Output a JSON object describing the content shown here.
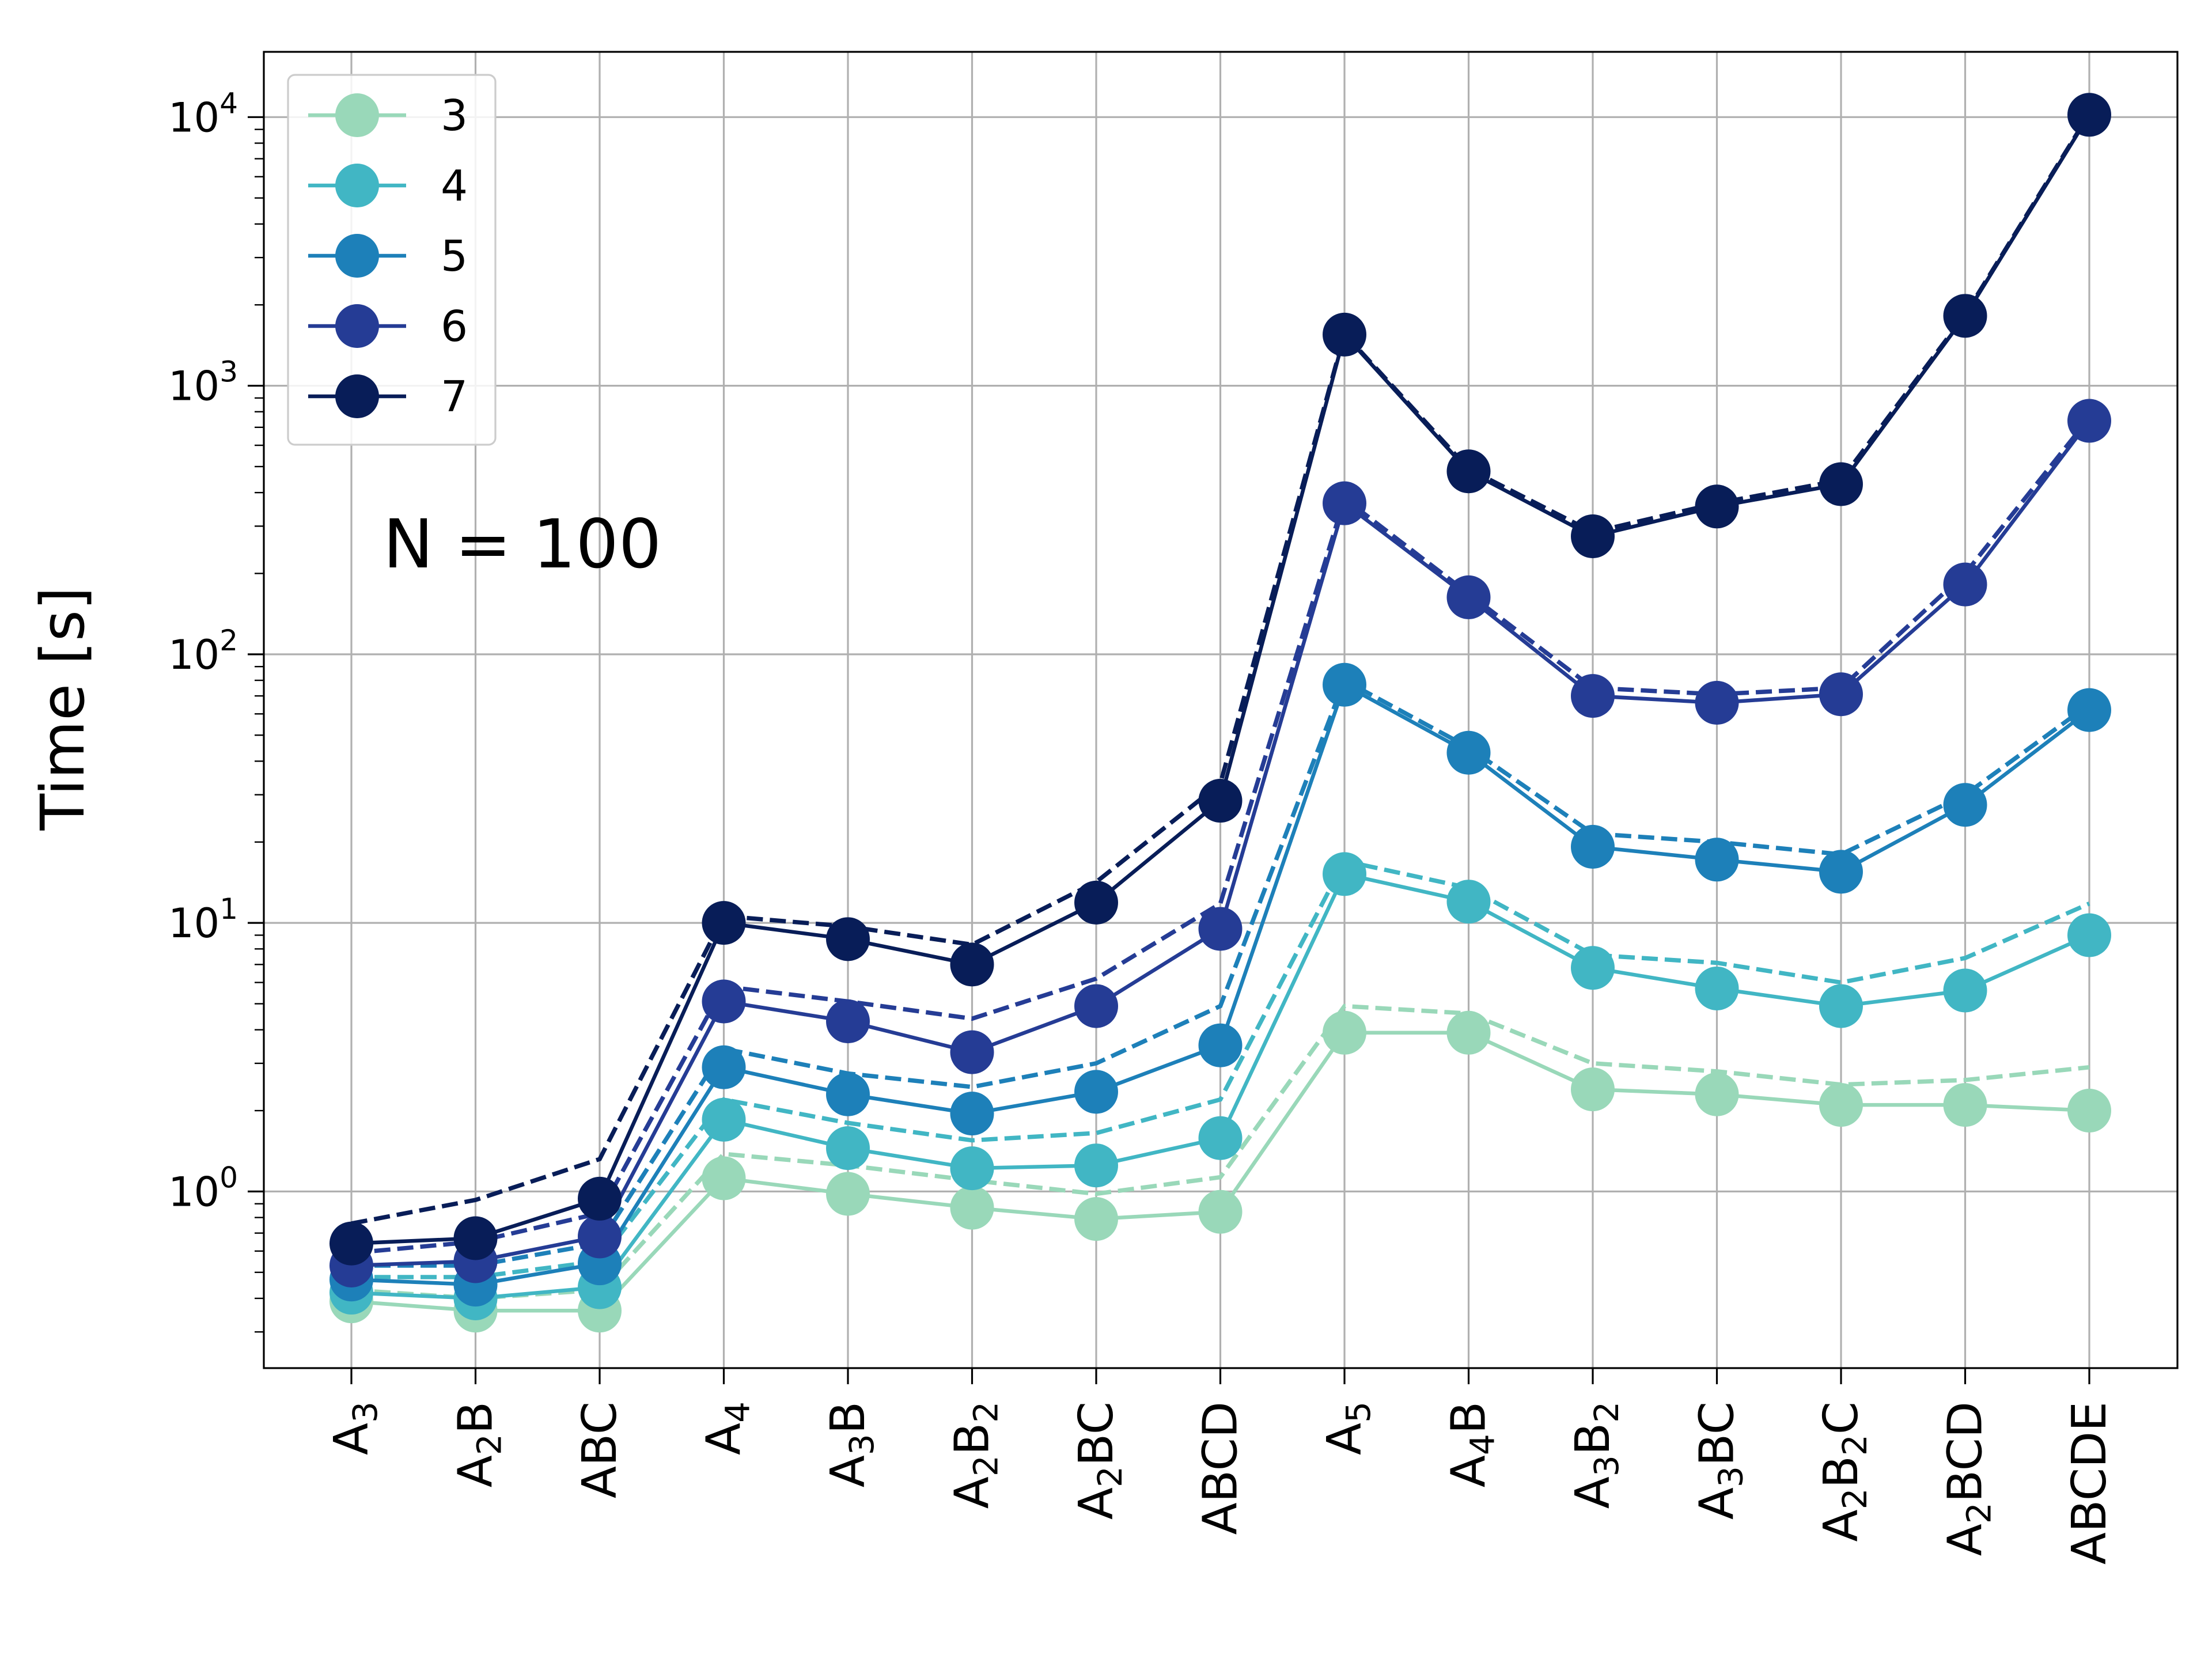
{
  "chart_data": {
    "type": "line",
    "ylabel": "Time [s]",
    "yscale": "log",
    "ylim": [
      0.22,
      17500
    ],
    "y_ticks": [
      {
        "value": 1,
        "base": "10",
        "exp": "0"
      },
      {
        "value": 10,
        "base": "10",
        "exp": "1"
      },
      {
        "value": 100,
        "base": "10",
        "exp": "2"
      },
      {
        "value": 1000,
        "base": "10",
        "exp": "3"
      },
      {
        "value": 10000,
        "base": "10",
        "exp": "4"
      }
    ],
    "annotation": "N = 100",
    "grid": true,
    "legend_position": "top-left",
    "categories": [
      [
        {
          "t": "A"
        },
        {
          "t": "3",
          "sub": true
        }
      ],
      [
        {
          "t": "A"
        },
        {
          "t": "2",
          "sub": true
        },
        {
          "t": "B"
        }
      ],
      [
        {
          "t": "ABC"
        }
      ],
      [
        {
          "t": "A"
        },
        {
          "t": "4",
          "sub": true
        }
      ],
      [
        {
          "t": "A"
        },
        {
          "t": "3",
          "sub": true
        },
        {
          "t": "B"
        }
      ],
      [
        {
          "t": "A"
        },
        {
          "t": "2",
          "sub": true
        },
        {
          "t": "B"
        },
        {
          "t": "2",
          "sub": true
        }
      ],
      [
        {
          "t": "A"
        },
        {
          "t": "2",
          "sub": true
        },
        {
          "t": "BC"
        }
      ],
      [
        {
          "t": "ABCD"
        }
      ],
      [
        {
          "t": "A"
        },
        {
          "t": "5",
          "sub": true
        }
      ],
      [
        {
          "t": "A"
        },
        {
          "t": "4",
          "sub": true
        },
        {
          "t": "B"
        }
      ],
      [
        {
          "t": "A"
        },
        {
          "t": "3",
          "sub": true
        },
        {
          "t": "B"
        },
        {
          "t": "2",
          "sub": true
        }
      ],
      [
        {
          "t": "A"
        },
        {
          "t": "3",
          "sub": true
        },
        {
          "t": "BC"
        }
      ],
      [
        {
          "t": "A"
        },
        {
          "t": "2",
          "sub": true
        },
        {
          "t": "B"
        },
        {
          "t": "2",
          "sub": true
        },
        {
          "t": "C"
        }
      ],
      [
        {
          "t": "A"
        },
        {
          "t": "2",
          "sub": true
        },
        {
          "t": "BCD"
        }
      ],
      [
        {
          "t": "ABCDE"
        }
      ]
    ],
    "series": [
      {
        "name": "3",
        "color": "#99d8b9",
        "solid": [
          0.39,
          0.36,
          0.36,
          1.12,
          0.98,
          0.87,
          0.79,
          0.84,
          3.9,
          3.9,
          2.4,
          2.3,
          2.1,
          2.1,
          2.0
        ],
        "dashed": [
          0.43,
          0.4,
          0.43,
          1.38,
          1.25,
          1.1,
          0.98,
          1.13,
          4.9,
          4.6,
          3.0,
          2.8,
          2.5,
          2.6,
          2.9
        ]
      },
      {
        "name": "4",
        "color": "#41b6c4",
        "solid": [
          0.42,
          0.4,
          0.44,
          1.85,
          1.45,
          1.22,
          1.25,
          1.58,
          15.2,
          12.0,
          6.8,
          5.7,
          4.9,
          5.6,
          9.0
        ],
        "dashed": [
          0.48,
          0.48,
          0.55,
          2.2,
          1.8,
          1.55,
          1.65,
          2.2,
          17.0,
          13.5,
          7.6,
          7.1,
          6.0,
          7.4,
          11.8
        ]
      },
      {
        "name": "5",
        "color": "#1d80b9",
        "solid": [
          0.47,
          0.45,
          0.54,
          2.9,
          2.3,
          1.95,
          2.35,
          3.5,
          77,
          43,
          19.2,
          17.2,
          15.5,
          27.5,
          62
        ],
        "dashed": [
          0.53,
          0.53,
          0.64,
          3.4,
          2.75,
          2.45,
          3.0,
          4.9,
          80,
          45,
          21.5,
          20.0,
          18.0,
          30,
          65
        ]
      },
      {
        "name": "6",
        "color": "#253c95",
        "solid": [
          0.53,
          0.55,
          0.68,
          5.1,
          4.3,
          3.3,
          4.9,
          9.5,
          365,
          163,
          70,
          66,
          71,
          182,
          740
        ],
        "dashed": [
          0.59,
          0.65,
          0.83,
          5.8,
          5.1,
          4.4,
          6.2,
          11.8,
          380,
          168,
          75,
          71,
          75,
          200,
          760
        ]
      },
      {
        "name": "7",
        "color": "#081d58",
        "solid": [
          0.64,
          0.67,
          0.94,
          10.0,
          8.7,
          7.0,
          11.9,
          28.5,
          1550,
          480,
          275,
          355,
          430,
          1820,
          10200
        ],
        "dashed": [
          0.76,
          0.93,
          1.32,
          10.6,
          9.7,
          8.3,
          14.2,
          33.0,
          1560,
          490,
          285,
          365,
          445,
          1840,
          10300
        ]
      }
    ]
  }
}
